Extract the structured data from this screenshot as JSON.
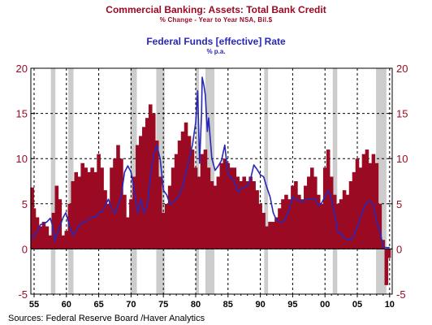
{
  "chart_data": {
    "type": "bar",
    "title": "Commercial Banking: Assets: Total Bank Credit",
    "subtitle": "% Change - Year to Year    NSA, Bil.$",
    "overlay_title": "Federal Funds [effective] Rate",
    "overlay_subtitle": "% p.a.",
    "source": "Sources:  Federal Reserve Board /Haver Analytics",
    "xlim": [
      1954.5,
      2010.4
    ],
    "ylim": [
      -5,
      20
    ],
    "yticks": [
      "-5",
      "0",
      "5",
      "10",
      "15",
      "20"
    ],
    "xticks": [
      "55",
      "60",
      "65",
      "70",
      "75",
      "80",
      "85",
      "90",
      "95",
      "00",
      "05",
      "10"
    ],
    "grid": true,
    "colors": {
      "bars": "#9b0a23",
      "line": "#2727b8",
      "recession": "#cccccc"
    },
    "recessions": [
      [
        1957.6,
        1958.3
      ],
      [
        1960.3,
        1961.1
      ],
      [
        1969.9,
        1970.9
      ],
      [
        1973.9,
        1975.2
      ],
      [
        1980.0,
        1980.5
      ],
      [
        1981.5,
        1982.9
      ],
      [
        1990.6,
        1991.2
      ],
      [
        2001.2,
        2001.9
      ],
      [
        2007.9,
        2009.5
      ]
    ],
    "series": [
      {
        "name": "Total Bank Credit",
        "x": [
          1954.7,
          1955.0,
          1955.5,
          1956.0,
          1956.5,
          1957.0,
          1957.5,
          1958.0,
          1958.5,
          1959.0,
          1959.5,
          1960.0,
          1960.5,
          1961.0,
          1961.5,
          1962.0,
          1962.5,
          1963.0,
          1963.5,
          1964.0,
          1964.5,
          1965.0,
          1965.5,
          1966.0,
          1966.5,
          1967.0,
          1967.5,
          1968.0,
          1968.5,
          1969.0,
          1969.5,
          1970.0,
          1970.5,
          1971.0,
          1971.5,
          1972.0,
          1972.5,
          1973.0,
          1973.5,
          1974.0,
          1974.5,
          1975.0,
          1975.5,
          1976.0,
          1976.5,
          1977.0,
          1977.5,
          1978.0,
          1978.5,
          1979.0,
          1979.5,
          1980.0,
          1980.5,
          1981.0,
          1981.5,
          1982.0,
          1982.5,
          1983.0,
          1983.5,
          1984.0,
          1984.5,
          1985.0,
          1985.5,
          1986.0,
          1986.5,
          1987.0,
          1987.5,
          1988.0,
          1988.5,
          1989.0,
          1989.5,
          1990.0,
          1990.5,
          1991.0,
          1991.5,
          1992.0,
          1992.5,
          1993.0,
          1993.5,
          1994.0,
          1994.5,
          1995.0,
          1995.5,
          1996.0,
          1996.5,
          1997.0,
          1997.5,
          1998.0,
          1998.5,
          1999.0,
          1999.5,
          2000.0,
          2000.5,
          2001.0,
          2001.5,
          2002.0,
          2002.5,
          2003.0,
          2003.5,
          2004.0,
          2004.5,
          2005.0,
          2005.5,
          2006.0,
          2006.5,
          2007.0,
          2007.5,
          2008.0,
          2008.5,
          2009.0,
          2009.5,
          2009.9
        ],
        "values": [
          6.8,
          4.5,
          3.5,
          2.5,
          3.0,
          2.5,
          1.5,
          4.0,
          7.0,
          5.5,
          1.5,
          2.0,
          5.0,
          7.5,
          8.5,
          8.0,
          9.5,
          9.0,
          8.5,
          9.0,
          8.5,
          10.5,
          9.0,
          6.5,
          5.0,
          9.0,
          10.0,
          11.5,
          10.0,
          6.0,
          3.5,
          5.5,
          8.0,
          11.5,
          12.5,
          13.5,
          14.5,
          16.0,
          15.0,
          12.0,
          8.0,
          4.0,
          5.0,
          7.0,
          9.0,
          10.5,
          12.0,
          13.0,
          14.0,
          12.5,
          11.0,
          9.0,
          8.0,
          10.5,
          11.0,
          9.0,
          7.5,
          7.0,
          8.0,
          9.5,
          10.0,
          9.5,
          9.0,
          9.0,
          8.0,
          7.5,
          8.0,
          7.5,
          8.0,
          7.5,
          6.5,
          5.0,
          4.0,
          2.5,
          3.0,
          3.0,
          3.5,
          4.5,
          5.5,
          6.0,
          5.5,
          7.0,
          7.5,
          6.0,
          5.5,
          7.0,
          8.0,
          9.0,
          8.0,
          6.0,
          5.0,
          9.0,
          11.0,
          8.0,
          6.0,
          5.0,
          5.5,
          6.5,
          6.0,
          7.5,
          8.5,
          10.0,
          9.0,
          10.5,
          11.0,
          9.5,
          10.5,
          9.5,
          5.0,
          1.0,
          -4.0,
          -1.0
        ]
      },
      {
        "name": "Federal Funds [effective] Rate",
        "x": [
          1954.5,
          1955.0,
          1955.5,
          1956.0,
          1956.5,
          1957.0,
          1957.5,
          1957.9,
          1958.2,
          1958.5,
          1959.0,
          1959.5,
          1959.9,
          1960.3,
          1960.7,
          1961.0,
          1961.5,
          1962.0,
          1962.5,
          1963.0,
          1963.5,
          1964.0,
          1964.5,
          1965.0,
          1965.5,
          1966.0,
          1966.5,
          1967.0,
          1967.5,
          1968.0,
          1968.5,
          1969.0,
          1969.5,
          1970.0,
          1970.5,
          1971.0,
          1971.5,
          1972.0,
          1972.5,
          1973.0,
          1973.5,
          1974.0,
          1974.5,
          1975.0,
          1975.5,
          1976.0,
          1976.5,
          1977.0,
          1977.5,
          1978.0,
          1978.5,
          1979.0,
          1979.5,
          1980.0,
          1980.3,
          1980.6,
          1980.9,
          1981.0,
          1981.3,
          1981.5,
          1981.8,
          1982.0,
          1982.5,
          1983.0,
          1983.5,
          1984.0,
          1984.5,
          1985.0,
          1985.5,
          1986.0,
          1986.5,
          1987.0,
          1987.5,
          1988.0,
          1988.5,
          1989.0,
          1989.5,
          1990.0,
          1990.5,
          1991.0,
          1991.5,
          1992.0,
          1992.5,
          1993.0,
          1993.5,
          1994.0,
          1994.5,
          1995.0,
          1995.5,
          1996.0,
          1996.5,
          1997.0,
          1997.5,
          1998.0,
          1998.5,
          1999.0,
          1999.5,
          2000.0,
          2000.5,
          2001.0,
          2001.5,
          2002.0,
          2002.5,
          2003.0,
          2003.5,
          2004.0,
          2004.5,
          2005.0,
          2005.5,
          2006.0,
          2006.5,
          2007.0,
          2007.5,
          2008.0,
          2008.5,
          2009.0,
          2009.5,
          2010.0
        ],
        "values": [
          1.0,
          1.5,
          2.0,
          2.7,
          2.8,
          3.0,
          3.4,
          2.5,
          0.8,
          1.5,
          2.5,
          3.5,
          4.0,
          3.0,
          2.0,
          1.5,
          2.0,
          2.7,
          2.9,
          3.0,
          3.4,
          3.5,
          3.5,
          4.0,
          4.1,
          4.8,
          5.5,
          4.5,
          3.9,
          4.8,
          6.0,
          8.5,
          9.2,
          8.5,
          6.5,
          4.0,
          5.5,
          4.0,
          4.8,
          8.0,
          10.5,
          11.5,
          10.0,
          6.5,
          6.0,
          5.0,
          5.2,
          5.5,
          6.0,
          7.0,
          8.5,
          10.0,
          11.5,
          14.0,
          17.5,
          9.5,
          15.0,
          19.0,
          18.0,
          17.0,
          13.0,
          14.5,
          10.0,
          8.7,
          9.2,
          9.8,
          11.5,
          8.2,
          7.9,
          7.5,
          6.3,
          6.7,
          6.8,
          7.0,
          7.8,
          9.3,
          8.8,
          8.2,
          8.0,
          6.8,
          5.8,
          4.0,
          3.2,
          3.0,
          3.0,
          3.5,
          4.5,
          5.8,
          5.5,
          5.3,
          5.2,
          5.5,
          5.5,
          5.5,
          5.5,
          4.8,
          5.1,
          5.8,
          6.5,
          5.5,
          3.8,
          1.8,
          1.7,
          1.2,
          1.0,
          1.0,
          1.5,
          2.5,
          3.5,
          4.5,
          5.2,
          5.25,
          5.0,
          3.0,
          2.0,
          0.2,
          0.15,
          0.15
        ]
      }
    ]
  }
}
